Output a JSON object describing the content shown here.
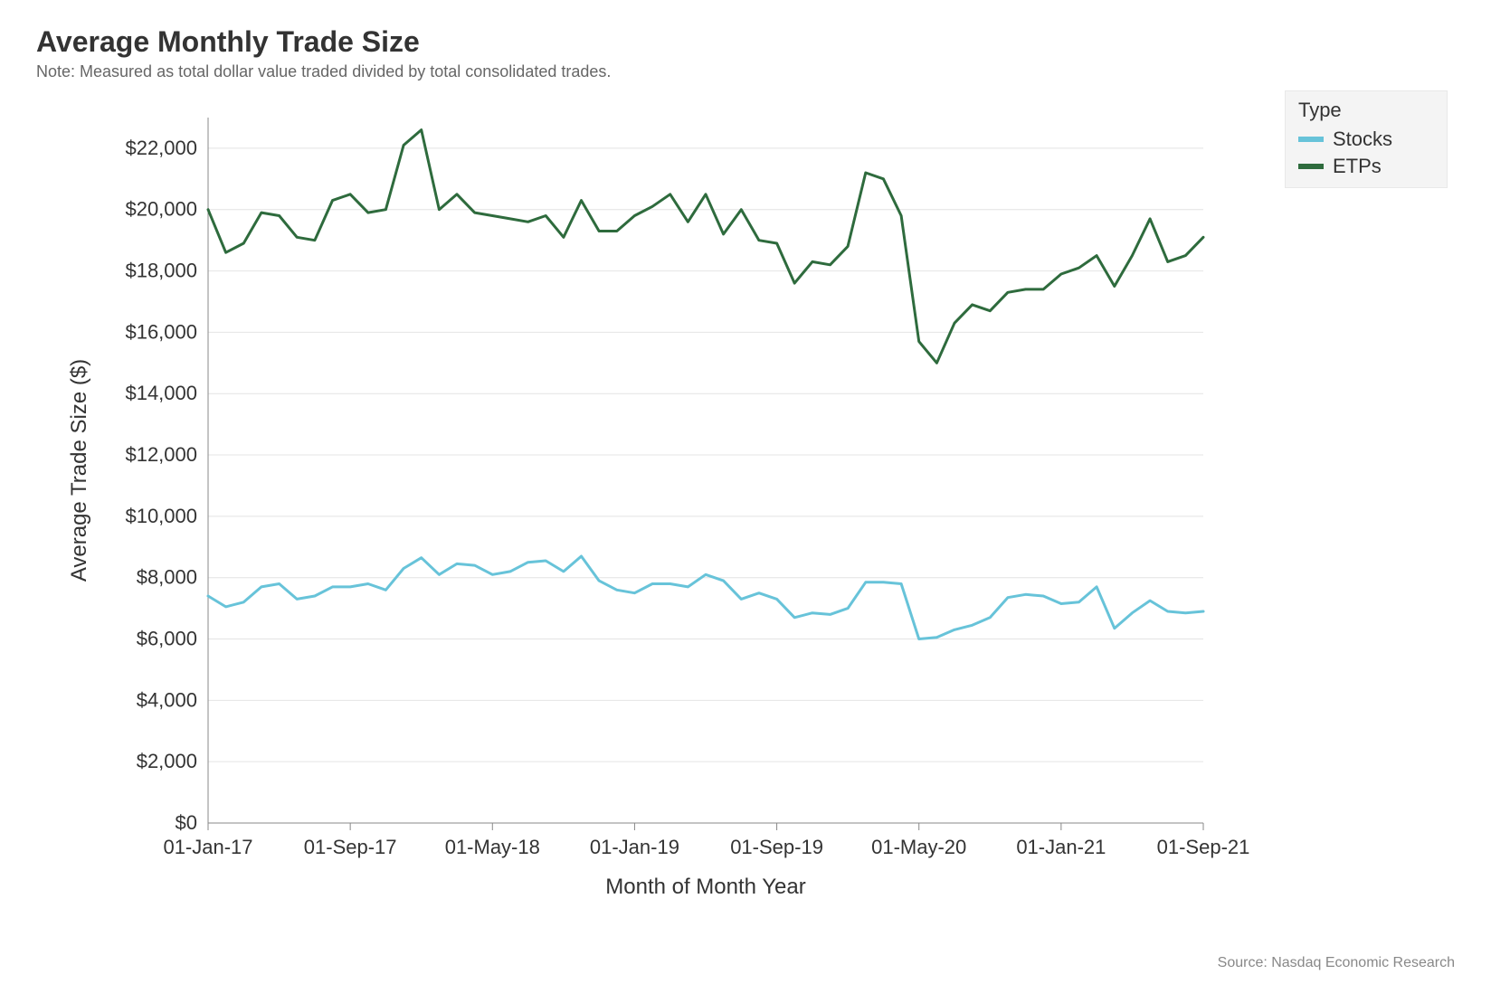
{
  "title": "Average Monthly Trade Size",
  "subtitle": "Note: Measured as total dollar value traded divided by total consolidated trades.",
  "source": "Source: Nasdaq Economic Research",
  "legend": {
    "title": "Type",
    "items": [
      {
        "label": "Stocks",
        "color": "#67c3d9"
      },
      {
        "label": "ETPs",
        "color": "#2e6b3d"
      }
    ]
  },
  "chart": {
    "type": "line",
    "background_color": "#ffffff",
    "grid_color": "#e4e4e4",
    "axis_color": "#888888",
    "text_color": "#333333",
    "y_axis": {
      "label": "Average Trade Size ($)",
      "min": 0,
      "max": 23000,
      "ticks": [
        0,
        2000,
        4000,
        6000,
        8000,
        10000,
        12000,
        14000,
        16000,
        18000,
        20000,
        22000
      ],
      "tick_labels": [
        "$0",
        "$2,000",
        "$4,000",
        "$6,000",
        "$8,000",
        "$10,000",
        "$12,000",
        "$14,000",
        "$16,000",
        "$18,000",
        "$20,000",
        "$22,000"
      ],
      "label_fontsize": 24,
      "tick_fontsize": 22
    },
    "x_axis": {
      "label": "Month of Month Year",
      "min_index": 0,
      "max_index": 56,
      "tick_indices": [
        0,
        8,
        16,
        24,
        32,
        40,
        48,
        56
      ],
      "tick_labels": [
        "01-Jan-17",
        "01-Sep-17",
        "01-May-18",
        "01-Jan-19",
        "01-Sep-19",
        "01-May-20",
        "01-Jan-21",
        "01-Sep-21"
      ],
      "label_fontsize": 24,
      "tick_fontsize": 22
    },
    "line_width": 3,
    "series": [
      {
        "name": "ETPs",
        "color": "#2e6b3d",
        "values": [
          20000,
          18600,
          18900,
          19900,
          19800,
          19100,
          19000,
          20300,
          20500,
          19900,
          20000,
          22100,
          22600,
          20000,
          20500,
          19900,
          19800,
          19700,
          19600,
          19800,
          19100,
          20300,
          19300,
          19300,
          19800,
          20100,
          20500,
          19600,
          20500,
          19200,
          20000,
          19000,
          18900,
          17600,
          18300,
          18200,
          18800,
          21200,
          21000,
          19800,
          15700,
          15000,
          16300,
          16900,
          16700,
          17300,
          17400,
          17400,
          17900,
          18100,
          18500,
          17500,
          18500,
          19700,
          18300,
          18500,
          19100
        ]
      },
      {
        "name": "Stocks",
        "color": "#67c3d9",
        "values": [
          7400,
          7050,
          7200,
          7700,
          7800,
          7300,
          7400,
          7700,
          7700,
          7800,
          7600,
          8300,
          8650,
          8100,
          8450,
          8400,
          8100,
          8200,
          8500,
          8550,
          8200,
          8700,
          7900,
          7600,
          7500,
          7800,
          7800,
          7700,
          8100,
          7900,
          7300,
          7500,
          7300,
          6700,
          6850,
          6800,
          7000,
          7850,
          7850,
          7800,
          6000,
          6050,
          6300,
          6450,
          6700,
          7350,
          7450,
          7400,
          7150,
          7200,
          7700,
          6350,
          6850,
          7250,
          6900,
          6850,
          6900
        ]
      }
    ]
  }
}
